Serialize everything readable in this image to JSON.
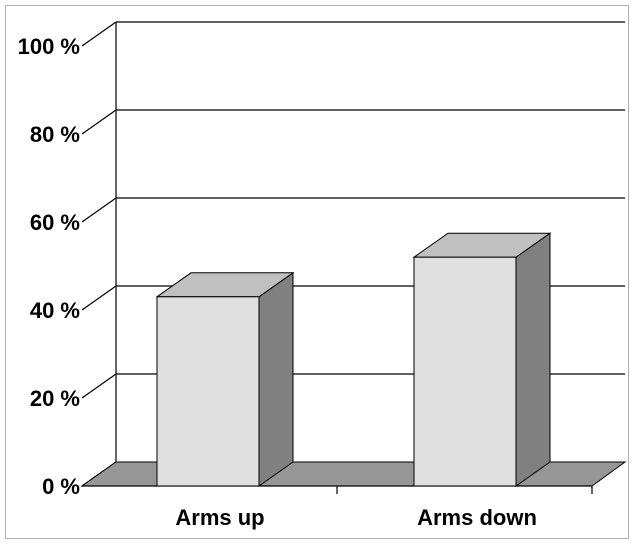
{
  "chart_data": {
    "type": "bar",
    "categories": [
      "Arms up",
      "Arms down"
    ],
    "values": [
      43,
      52
    ],
    "ylim": [
      0,
      100
    ],
    "yticks": [
      0,
      20,
      40,
      60,
      80,
      100
    ],
    "ytick_labels": [
      "0 %",
      "20 %",
      "40 %",
      "60 %",
      "80 %",
      "100 %"
    ],
    "grid": true,
    "style": "3d",
    "colors": {
      "bar_front": "#e0e0e0",
      "bar_top": "#c0c0c0",
      "bar_side": "#808080",
      "floor": "#969696",
      "grid": "#000000"
    }
  }
}
